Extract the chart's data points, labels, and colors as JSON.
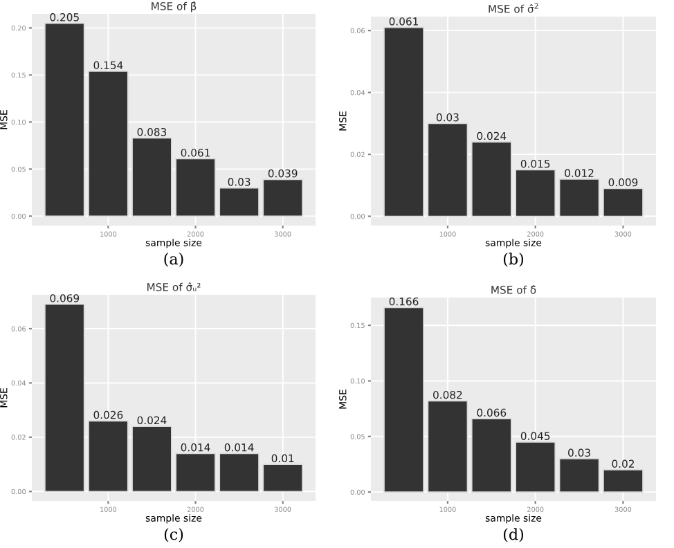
{
  "chart_data": [
    {
      "type": "bar",
      "title": "MSE of β̂",
      "xlabel": "sample size",
      "ylabel": "MSE",
      "x": [
        500,
        1000,
        1500,
        2000,
        2500,
        3000
      ],
      "values": [
        0.205,
        0.154,
        0.083,
        0.061,
        0.03,
        0.039
      ],
      "color": "#333333",
      "xlim": [
        125,
        3375
      ],
      "xticks": [
        1000,
        2000,
        3000
      ],
      "ylim": [
        -0.01,
        0.215
      ],
      "yticks": [
        {
          "value": 0,
          "label": "0.00"
        },
        {
          "value": 0.05,
          "label": "0.05"
        },
        {
          "value": 0.1,
          "label": "0.10"
        },
        {
          "value": 0.15,
          "label": "0.15"
        },
        {
          "value": 0.2,
          "label": "0.20"
        }
      ],
      "data_labels": true,
      "grid": true,
      "annotations": [
        "(a)"
      ]
    },
    {
      "type": "bar",
      "title": "MSE of σ̂$^{2}$",
      "xlabel": "sample size",
      "ylabel": "MSE",
      "x": [
        500,
        1000,
        1500,
        2000,
        2500,
        3000
      ],
      "values": [
        0.061,
        0.03,
        0.024,
        0.015,
        0.012,
        0.009
      ],
      "color": "#333333",
      "xlim": [
        125,
        3375
      ],
      "xticks": [
        1000,
        2000,
        3000
      ],
      "ylim": [
        -0.003,
        0.0645
      ],
      "yticks": [
        {
          "value": 0,
          "label": "0.00"
        },
        {
          "value": 0.02,
          "label": "0.02"
        },
        {
          "value": 0.04,
          "label": "0.04"
        },
        {
          "value": 0.06,
          "label": "0.06"
        }
      ],
      "data_labels": true,
      "grid": true,
      "annotations": [
        "(b)"
      ]
    },
    {
      "type": "bar",
      "title": "MSE of σ̂ᵤ²",
      "xlabel": "sample size",
      "ylabel": "MSE",
      "x": [
        500,
        1000,
        1500,
        2000,
        2500,
        3000
      ],
      "values": [
        0.069,
        0.026,
        0.024,
        0.014,
        0.014,
        0.01
      ],
      "color": "#333333",
      "xlim": [
        125,
        3375
      ],
      "xticks": [
        1000,
        2000,
        3000
      ],
      "ylim": [
        -0.0035,
        0.0725
      ],
      "yticks": [
        {
          "value": 0,
          "label": "0.00"
        },
        {
          "value": 0.02,
          "label": "0.02"
        },
        {
          "value": 0.04,
          "label": "0.04"
        },
        {
          "value": 0.06,
          "label": "0.06"
        }
      ],
      "data_labels": true,
      "grid": true,
      "annotations": [
        "(c)"
      ]
    },
    {
      "type": "bar",
      "title": "MSE of δ̂",
      "xlabel": "sample size",
      "ylabel": "MSE",
      "x": [
        500,
        1000,
        1500,
        2000,
        2500,
        3000
      ],
      "values": [
        0.166,
        0.082,
        0.066,
        0.045,
        0.03,
        0.02
      ],
      "color": "#333333",
      "xlim": [
        125,
        3375
      ],
      "xticks": [
        1000,
        2000,
        3000
      ],
      "ylim": [
        -0.008,
        0.175
      ],
      "yticks": [
        {
          "value": 0,
          "label": "0.00"
        },
        {
          "value": 0.05,
          "label": "0.05"
        },
        {
          "value": 0.1,
          "label": "0.10"
        },
        {
          "value": 0.15,
          "label": "0.15"
        }
      ],
      "data_labels": true,
      "grid": true,
      "annotations": [
        "(d)"
      ]
    }
  ]
}
